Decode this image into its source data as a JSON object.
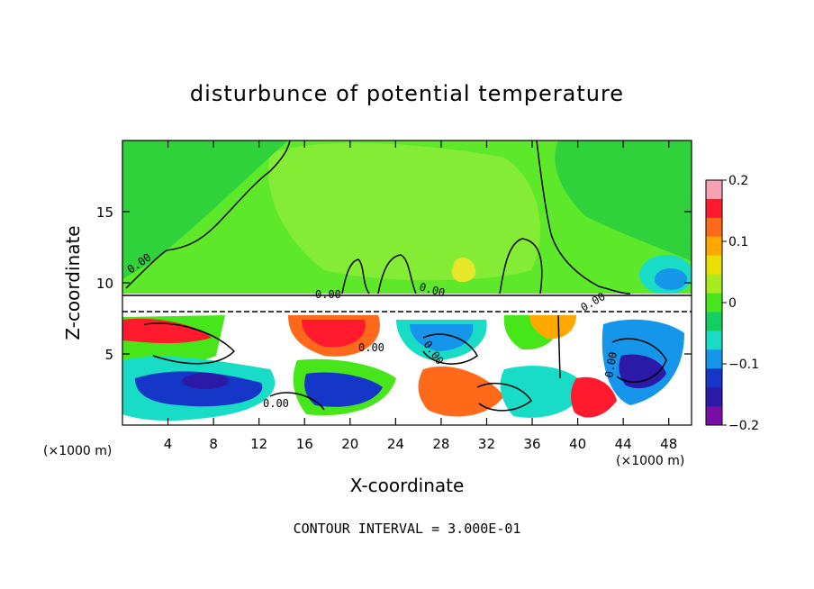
{
  "chart_data": {
    "type": "heatmap",
    "title": "disturbunce of potential temperature",
    "xlabel": "X-coordinate",
    "ylabel": "Z-coordinate",
    "x_unit_left": "(×1000 m)",
    "x_unit_right": "(×1000 m)",
    "footer": "CONTOUR INTERVAL = 3.000E-01",
    "xlim": [
      0,
      50
    ],
    "ylim": [
      0,
      20
    ],
    "x_ticks": [
      "4",
      "8",
      "12",
      "16",
      "20",
      "24",
      "28",
      "32",
      "36",
      "40",
      "44",
      "48"
    ],
    "y_ticks": [
      "5",
      "10",
      "15"
    ],
    "colorbar": {
      "range": [
        -0.2,
        0.2
      ],
      "ticks": [
        "0.2",
        "0.1",
        "0",
        "−0.1",
        "−0.2"
      ],
      "colors": [
        "#f7a1b5",
        "#ff1a2e",
        "#ff6a1a",
        "#ffa800",
        "#e9e000",
        "#a9ea1c",
        "#46e61a",
        "#13cf61",
        "#18dcc6",
        "#1696ea",
        "#1537c8",
        "#2b1aa8",
        "#7a0fa8"
      ]
    },
    "contour_labels": [
      "0.00",
      "0.00",
      "0.00",
      "0.00",
      "0.00",
      "0.00",
      "0.00",
      "0.00"
    ],
    "grid": false
  }
}
